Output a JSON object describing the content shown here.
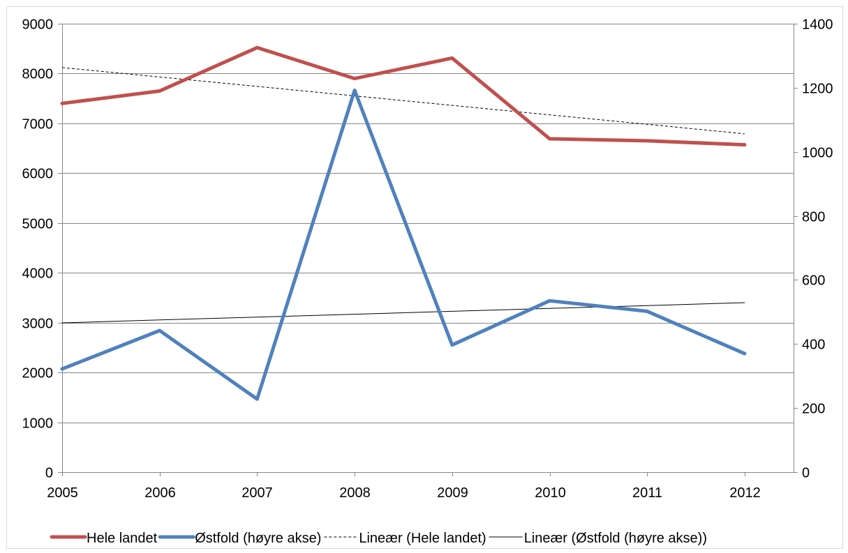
{
  "chart_data": {
    "type": "line",
    "x": [
      "2005",
      "2006",
      "2007",
      "2008",
      "2009",
      "2010",
      "2011",
      "2012"
    ],
    "series": [
      {
        "name": "Hele landet",
        "axis": "left",
        "color": "#c0504d",
        "style": "thick",
        "values": [
          7400,
          7650,
          8520,
          7900,
          8310,
          6690,
          6650,
          6570
        ]
      },
      {
        "name": "Østfold (høyre akse)",
        "axis": "right",
        "color": "#4f81bd",
        "style": "thick",
        "values": [
          322,
          442,
          228,
          1192,
          397,
          535,
          502,
          370
        ]
      },
      {
        "name": "Lineær (Hele landet)",
        "axis": "left",
        "color": "#000000",
        "style": "dashed",
        "trendline_of": "Hele landet",
        "values": [
          8120,
          7931,
          7741,
          7551,
          7361,
          7171,
          6981,
          6790
        ]
      },
      {
        "name": "Lineær (Østfold (høyre akse))",
        "axis": "right",
        "color": "#000000",
        "style": "thin",
        "trendline_of": "Østfold (høyre akse)",
        "values": [
          466,
          475,
          484,
          493,
          502,
          511,
          520,
          529
        ]
      }
    ],
    "left_axis": {
      "ylim": [
        0,
        9000
      ],
      "ticks": [
        "0",
        "1000",
        "2000",
        "3000",
        "4000",
        "5000",
        "6000",
        "7000",
        "8000",
        "9000"
      ]
    },
    "right_axis": {
      "ylim": [
        0,
        1400
      ],
      "ticks": [
        "0",
        "200",
        "400",
        "600",
        "800",
        "1000",
        "1200",
        "1400"
      ]
    },
    "grid": true,
    "legend_position": "bottom",
    "gridline_color": "#868686",
    "frame_color": "#868686"
  }
}
